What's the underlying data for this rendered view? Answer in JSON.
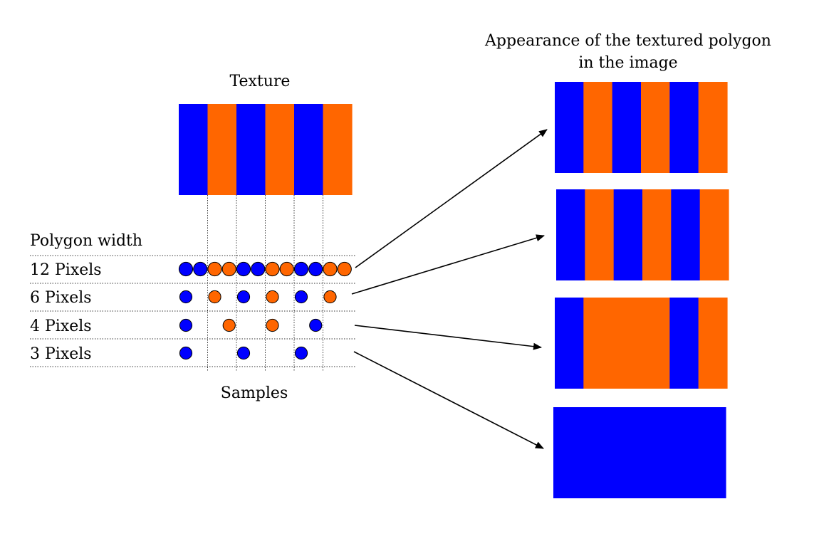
{
  "colors": {
    "blue": "#0000ff",
    "orange": "#ff6600",
    "line": "#000000"
  },
  "texture": {
    "title": "Texture",
    "stripes": [
      "blue",
      "orange",
      "blue",
      "orange",
      "blue",
      "orange"
    ]
  },
  "polygon_width_label": "Polygon width",
  "samples_label": "Samples",
  "result_title_line1": "Appearance of the textured polygon",
  "result_title_line2": "in the image",
  "rows": [
    {
      "label": "12 Pixels",
      "samples": [
        "blue",
        "blue",
        "orange",
        "orange",
        "blue",
        "blue",
        "orange",
        "orange",
        "blue",
        "blue",
        "orange",
        "orange"
      ],
      "result": [
        "blue",
        "orange",
        "blue",
        "orange",
        "blue",
        "orange"
      ]
    },
    {
      "label": "6 Pixels",
      "samples": [
        "blue",
        "orange",
        "blue",
        "orange",
        "blue",
        "orange"
      ],
      "result": [
        "blue",
        "orange",
        "blue",
        "orange",
        "blue",
        "orange"
      ]
    },
    {
      "label": "4 Pixels",
      "samples": [
        "blue",
        "orange",
        "orange",
        "blue"
      ],
      "result": [
        "blue",
        "orange",
        "orange",
        "orange",
        "blue",
        "orange"
      ]
    },
    {
      "label": "3 Pixels",
      "samples": [
        "blue",
        "blue",
        "blue"
      ],
      "result": [
        "blue",
        "blue",
        "blue",
        "blue",
        "blue",
        "blue"
      ]
    }
  ]
}
